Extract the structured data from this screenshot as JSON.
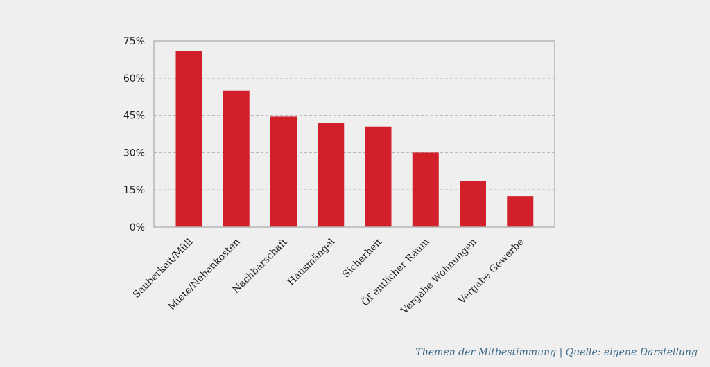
{
  "caption": "Themen der Mitbestimmung | Quelle: eigene Darstellung",
  "chart_data": {
    "type": "bar",
    "categories": [
      "Sauberkeit/Müll",
      "Miete/Nebenkosten",
      "Nachbarschaft",
      "Hausmängel",
      "Sicherheit",
      "Öf entlicher Raum",
      "Vergabe Wohnungen",
      "Vergabe Gewerbe"
    ],
    "values": [
      71,
      55,
      44.5,
      42,
      40.5,
      30,
      18.5,
      12.5
    ],
    "ylim": [
      0,
      75
    ],
    "yticks": [
      0,
      15,
      30,
      45,
      60,
      75
    ],
    "ytick_labels": [
      "0%",
      "15%",
      "30%",
      "45%",
      "60%",
      "75%"
    ],
    "grid": true,
    "bar_color": "#d2202a"
  }
}
